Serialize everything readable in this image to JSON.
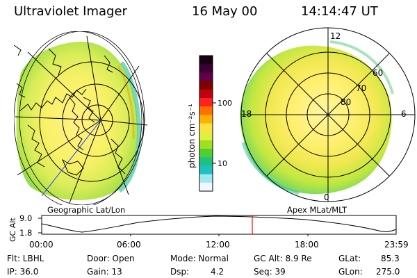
{
  "header": {
    "instrument": "Ultraviolet Imager",
    "date": "16 May 00",
    "time": "14:14:47 UT"
  },
  "left_panel": {
    "label": "Geographic Lat/Lon"
  },
  "right_panel": {
    "label": "Apex MLat/MLT",
    "mlt_labels": [
      "12",
      "18",
      "6",
      "0"
    ],
    "mlat_labels": [
      "60",
      "70",
      "80"
    ]
  },
  "colorbar": {
    "unit_label": "photon cm⁻²s⁻¹",
    "tick_labels": [
      "100",
      "10"
    ],
    "colors": [
      "#1a0010",
      "#3a0030",
      "#60004a",
      "#800000",
      "#c00010",
      "#ff2020",
      "#ff7000",
      "#ffb000",
      "#ffe040",
      "#e0f040",
      "#a0e020",
      "#50d030",
      "#20c080",
      "#20c0c0",
      "#a0e8f0",
      "#f0f8ff"
    ]
  },
  "altitude_strip": {
    "axis_title": "GC Alt",
    "y_ticks": [
      "9.0",
      "1.8"
    ],
    "x_ticks": [
      "00:00",
      "06:00",
      "12:00",
      "18:00",
      "23:59"
    ],
    "marker_color": "#ff0000"
  },
  "info": {
    "flt": "Flt: LBHL",
    "ip": "IP: 36.0",
    "door": "Door: Open",
    "gain": "Gain: 13",
    "mode": "Mode: Normal",
    "dsp_label": "Dsp:",
    "dsp_value": "4.2",
    "gc_alt": "GC Alt: 8.9 Re",
    "seq": "Seq: 39",
    "glat_label": "GLat:",
    "glat_value": "85.3",
    "glon_label": "GLon:",
    "glon_value": "275.0"
  }
}
